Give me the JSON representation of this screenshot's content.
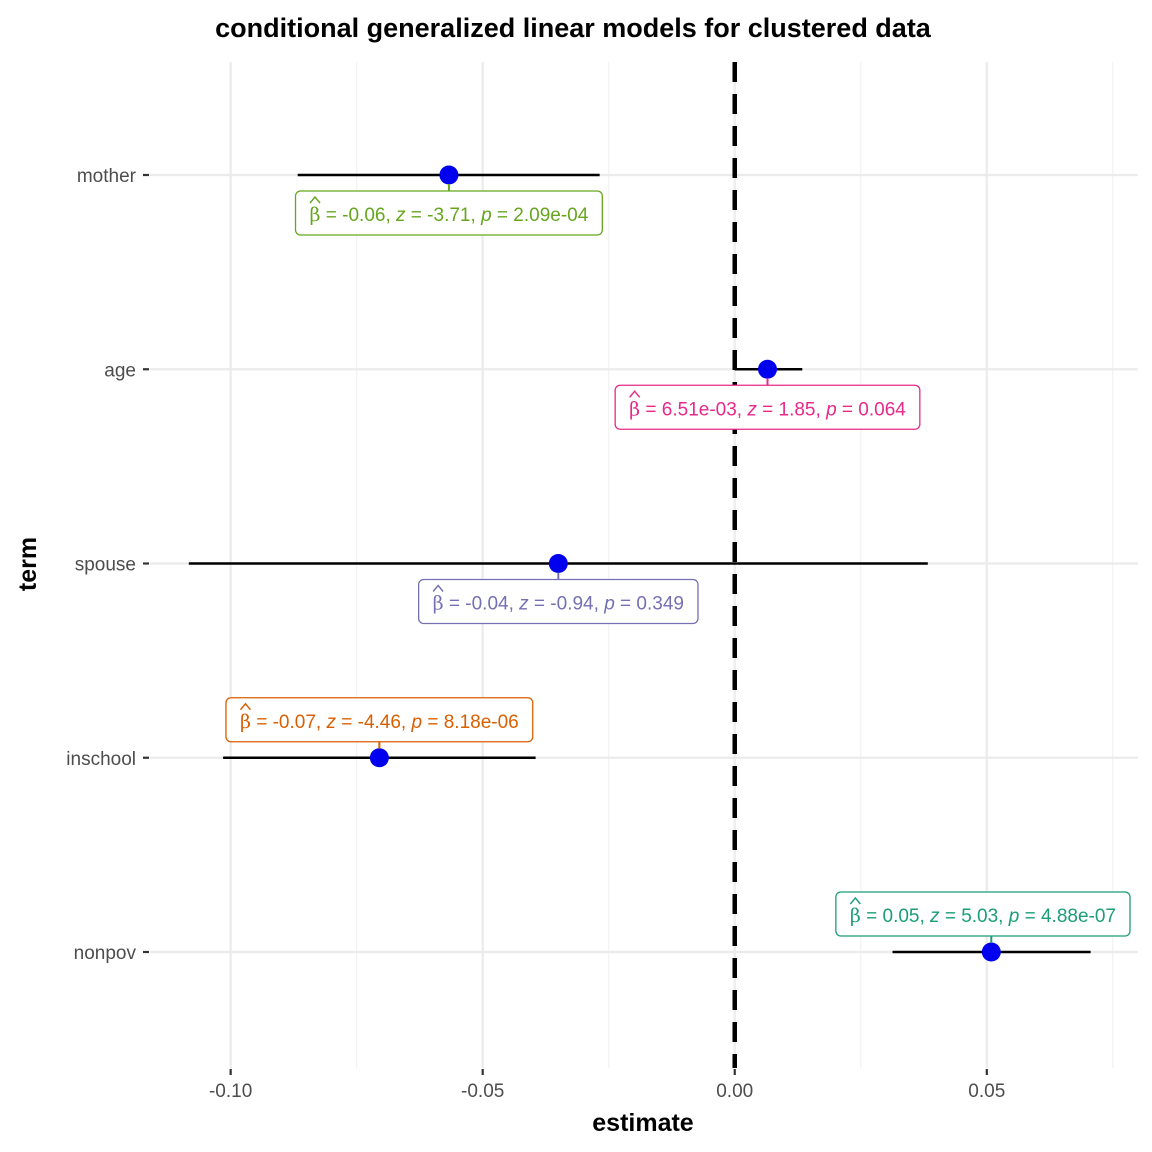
{
  "chart_data": {
    "type": "scatter",
    "title": "conditional generalized linear models for clustered data",
    "xlabel": "estimate",
    "ylabel": "term",
    "xlim": [
      -0.116,
      0.08
    ],
    "x_ticks": [
      -0.1,
      -0.05,
      0.0,
      0.05
    ],
    "x_tick_labels": [
      "-0.10",
      "-0.05",
      "0.00",
      "0.05"
    ],
    "reference_line": {
      "x": 0,
      "style": "dashed"
    },
    "grid": true,
    "point_color": "#0000ee",
    "terms": [
      {
        "term": "mother",
        "estimate": -0.0567,
        "conf_low": -0.0867,
        "conf_high": -0.0268,
        "label_beta": "-0.06",
        "label_z": "-3.71",
        "label_p": "2.09e-04",
        "label_color": "#66a61e",
        "label_side": "below"
      },
      {
        "term": "age",
        "estimate": 0.0065,
        "conf_low": 0.0,
        "conf_high": 0.0134,
        "label_beta": "6.51e-03",
        "label_z": "1.85",
        "label_p": "0.064",
        "label_color": "#e7298a",
        "label_side": "below"
      },
      {
        "term": "spouse",
        "estimate": -0.035,
        "conf_low": -0.1083,
        "conf_high": 0.0383,
        "label_beta": "-0.04",
        "label_z": "-0.94",
        "label_p": "0.349",
        "label_color": "#7570b3",
        "label_side": "below"
      },
      {
        "term": "inschool",
        "estimate": -0.0705,
        "conf_low": -0.1015,
        "conf_high": -0.0395,
        "label_beta": "-0.07",
        "label_z": "-4.46",
        "label_p": "8.18e-06",
        "label_color": "#d95f02",
        "label_side": "above"
      },
      {
        "term": "nonpov",
        "estimate": 0.0509,
        "conf_low": 0.0313,
        "conf_high": 0.0706,
        "label_beta": "0.05",
        "label_z": "5.03",
        "label_p": "4.88e-07",
        "label_color": "#1b9e77",
        "label_side": "above"
      }
    ]
  }
}
